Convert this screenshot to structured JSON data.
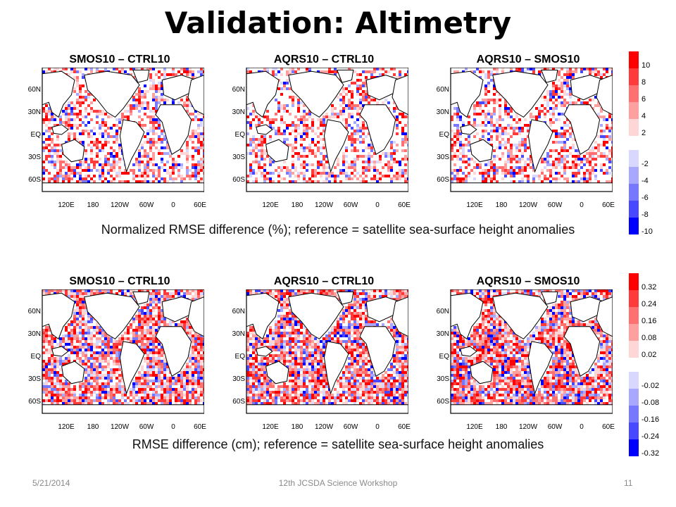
{
  "slide": {
    "title": "Validation:  Altimetry",
    "footer_date": "5/21/2014",
    "footer_event": "12th JCSDA Science Workshop",
    "footer_page": "11"
  },
  "top_row": {
    "panel_titles": [
      "SMOS10 – CTRL10",
      "AQRS10 – CTRL10",
      "AQRS10 – SMOS10"
    ],
    "caption": "Normalized RMSE difference (%); reference = satellite sea-surface height anomalies",
    "colorbar_labels": [
      "10",
      "8",
      "6",
      "4",
      "2",
      "-2",
      "-4",
      "-6",
      "-8",
      "-10"
    ]
  },
  "bottom_row": {
    "panel_titles": [
      "SMOS10 – CTRL10",
      "AQRS10 – CTRL10",
      "AQRS10 – SMOS10"
    ],
    "caption": "RMSE difference (cm); reference = satellite sea-surface height anomalies",
    "colorbar_labels": [
      "0.32",
      "0.24",
      "0.16",
      "0.08",
      "0.02",
      "-0.02",
      "-0.08",
      "-0.16",
      "-0.24",
      "-0.32"
    ]
  },
  "axes": {
    "lat_labels": [
      "60N",
      "30N",
      "EQ",
      "30S",
      "60S"
    ],
    "lon_labels": [
      "120E",
      "180",
      "120W",
      "60W",
      "0",
      "60E"
    ]
  },
  "colors": {
    "positive": [
      "#ff0000",
      "#ff3a3a",
      "#ff7070",
      "#ffa0a0",
      "#ffd6d6"
    ],
    "negative": [
      "#d8d8ff",
      "#a8a8ff",
      "#7878ff",
      "#4848ff",
      "#0000ff"
    ]
  }
}
